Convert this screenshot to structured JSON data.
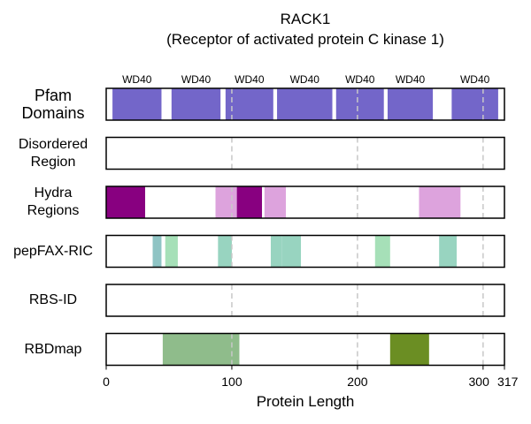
{
  "chart_data": {
    "type": "track",
    "title": "RACK1",
    "subtitle": "(Receptor of activated protein C kinase 1)",
    "xlabel": "Protein Length",
    "xlim": [
      0,
      317
    ],
    "xticks": [
      0,
      100,
      200,
      300,
      317
    ],
    "vlines": [
      100,
      200,
      300
    ],
    "tracks": [
      {
        "label": "Pfam\nDomains",
        "segments": [
          {
            "start": 5,
            "end": 44,
            "color": "#7366c9",
            "label": "WD40"
          },
          {
            "start": 52,
            "end": 91,
            "color": "#7366c9",
            "label": "WD40"
          },
          {
            "start": 95,
            "end": 133,
            "color": "#7366c9",
            "label": "WD40"
          },
          {
            "start": 136,
            "end": 180,
            "color": "#7366c9",
            "label": "WD40"
          },
          {
            "start": 183,
            "end": 221,
            "color": "#7366c9",
            "label": "WD40"
          },
          {
            "start": 224,
            "end": 260,
            "color": "#7366c9",
            "label": "WD40"
          },
          {
            "start": 275,
            "end": 312,
            "color": "#7366c9",
            "label": "WD40"
          }
        ]
      },
      {
        "label": "Disordered\nRegion",
        "segments": []
      },
      {
        "label": "Hydra\nRegions",
        "segments": [
          {
            "start": 0,
            "end": 31,
            "color": "#880080"
          },
          {
            "start": 87,
            "end": 104,
            "color": "#dda3dd"
          },
          {
            "start": 104,
            "end": 124,
            "color": "#880080"
          },
          {
            "start": 126,
            "end": 143,
            "color": "#dda3dd"
          },
          {
            "start": 249,
            "end": 282,
            "color": "#dda3dd"
          }
        ]
      },
      {
        "label": "pepFAX-RIC",
        "segments": [
          {
            "start": 37,
            "end": 44,
            "color": "#8fc4c4"
          },
          {
            "start": 47,
            "end": 57,
            "color": "#a6e0b8"
          },
          {
            "start": 89,
            "end": 100,
            "color": "#98d4c0"
          },
          {
            "start": 131,
            "end": 140,
            "color": "#98d4c0"
          },
          {
            "start": 140,
            "end": 155,
            "color": "#98d4c0"
          },
          {
            "start": 214,
            "end": 226,
            "color": "#a6e0b8"
          },
          {
            "start": 265,
            "end": 279,
            "color": "#98d4c0"
          }
        ]
      },
      {
        "label": "RBS-ID",
        "segments": []
      },
      {
        "label": "RBDmap",
        "segments": [
          {
            "start": 45,
            "end": 106,
            "color": "#8fbc8b"
          },
          {
            "start": 226,
            "end": 257,
            "color": "#6b8e23"
          }
        ]
      }
    ]
  }
}
